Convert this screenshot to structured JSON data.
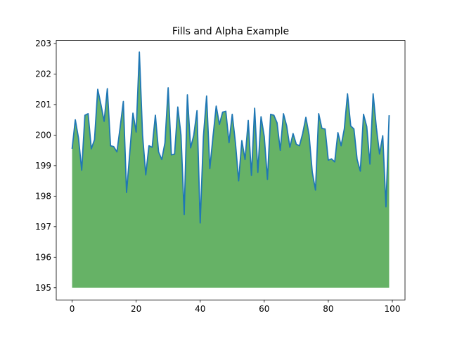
{
  "chart_data": {
    "type": "area",
    "title": "Fills and Alpha Example",
    "xlabel": "",
    "ylabel": "",
    "xlim": [
      -4.95,
      103.95
    ],
    "ylim": [
      194.6,
      203.1
    ],
    "xticks": [
      0,
      20,
      40,
      60,
      80,
      100
    ],
    "yticks": [
      195,
      196,
      197,
      198,
      199,
      200,
      201,
      202,
      203
    ],
    "fill_baseline": 195,
    "grid": false,
    "colors": {
      "line": "#1f77b4",
      "fill": "#66b266"
    },
    "series": [
      {
        "x": [
          0,
          1,
          2,
          3,
          4,
          5,
          6,
          7,
          8,
          9,
          10,
          11,
          12,
          13,
          14,
          15,
          16,
          17,
          18,
          19,
          20,
          21,
          22,
          23,
          24,
          25,
          26,
          27,
          28,
          29,
          30,
          31,
          32,
          33,
          34,
          35,
          36,
          37,
          38,
          39,
          40,
          41,
          42,
          43,
          44,
          45,
          46,
          47,
          48,
          49,
          50,
          51,
          52,
          53,
          54,
          55,
          56,
          57,
          58,
          59,
          60,
          61,
          62,
          63,
          64,
          65,
          66,
          67,
          68,
          69,
          70,
          71,
          72,
          73,
          74,
          75,
          76,
          77,
          78,
          79,
          80,
          81,
          82,
          83,
          84,
          85,
          86,
          87,
          88,
          89,
          90,
          91,
          92,
          93,
          94,
          95,
          96,
          97,
          98,
          99
        ],
        "values": [
          199.55,
          200.5,
          199.9,
          198.85,
          200.65,
          200.7,
          199.55,
          199.85,
          201.5,
          201.0,
          200.45,
          201.52,
          199.65,
          199.62,
          199.45,
          200.25,
          201.1,
          198.12,
          199.4,
          200.72,
          200.1,
          202.72,
          200.0,
          198.7,
          199.65,
          199.6,
          200.65,
          199.45,
          199.2,
          199.75,
          201.55,
          199.35,
          199.38,
          200.92,
          200.0,
          197.4,
          201.32,
          199.58,
          200.0,
          200.8,
          197.12,
          199.95,
          201.28,
          198.9,
          199.95,
          200.95,
          200.35,
          200.75,
          200.78,
          199.75,
          200.68,
          199.75,
          198.5,
          199.82,
          199.2,
          200.48,
          198.68,
          200.88,
          198.78,
          200.6,
          199.95,
          198.55,
          200.68,
          200.65,
          200.4,
          199.5,
          200.7,
          200.3,
          199.6,
          200.05,
          199.7,
          199.65,
          200.05,
          200.58,
          200.0,
          198.78,
          198.2,
          200.7,
          200.22,
          200.2,
          199.18,
          199.22,
          199.12,
          200.08,
          199.65,
          200.2,
          201.35,
          200.3,
          200.2,
          199.2,
          198.82,
          200.68,
          200.28,
          199.05,
          201.35,
          200.25,
          199.38,
          199.98,
          197.65,
          200.65
        ]
      }
    ]
  }
}
